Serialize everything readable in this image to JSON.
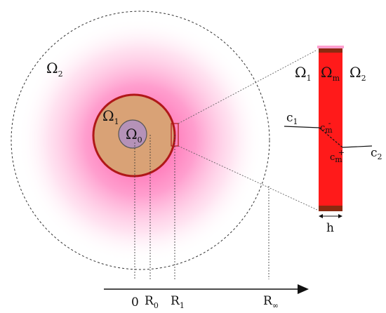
{
  "diagram": {
    "region_labels": {
      "outer": "Ω",
      "outer_sub": "2",
      "shell": "Ω",
      "shell_sub": "1",
      "core": "Ω",
      "core_sub": "0"
    },
    "inset_labels": {
      "left": "Ω",
      "left_sub": "1",
      "middle": "Ω",
      "middle_sub": "m",
      "right": "Ω",
      "right_sub": "2",
      "c1": "c",
      "c1_sub": "1",
      "c2": "c",
      "c2_sub": "2",
      "cm_upper": "c",
      "cm_upper_sub": "m",
      "cm_upper_sup": "-",
      "cm_lower": "c",
      "cm_lower_sub": "m",
      "cm_lower_sup": "+",
      "thickness": "h"
    },
    "axis_ticks": [
      {
        "main": "0",
        "sub": ""
      },
      {
        "main": "R",
        "sub": "0"
      },
      {
        "main": "R",
        "sub": "1"
      },
      {
        "main": "R",
        "sub": "∞"
      }
    ],
    "colors": {
      "halo": "#ff3399",
      "shell_fill": "#d9a276",
      "shell_edge": "#b01818",
      "core_fill": "#b592b8",
      "membrane": "#ff1a1a",
      "membrane_edge": "#8a2a10"
    }
  }
}
